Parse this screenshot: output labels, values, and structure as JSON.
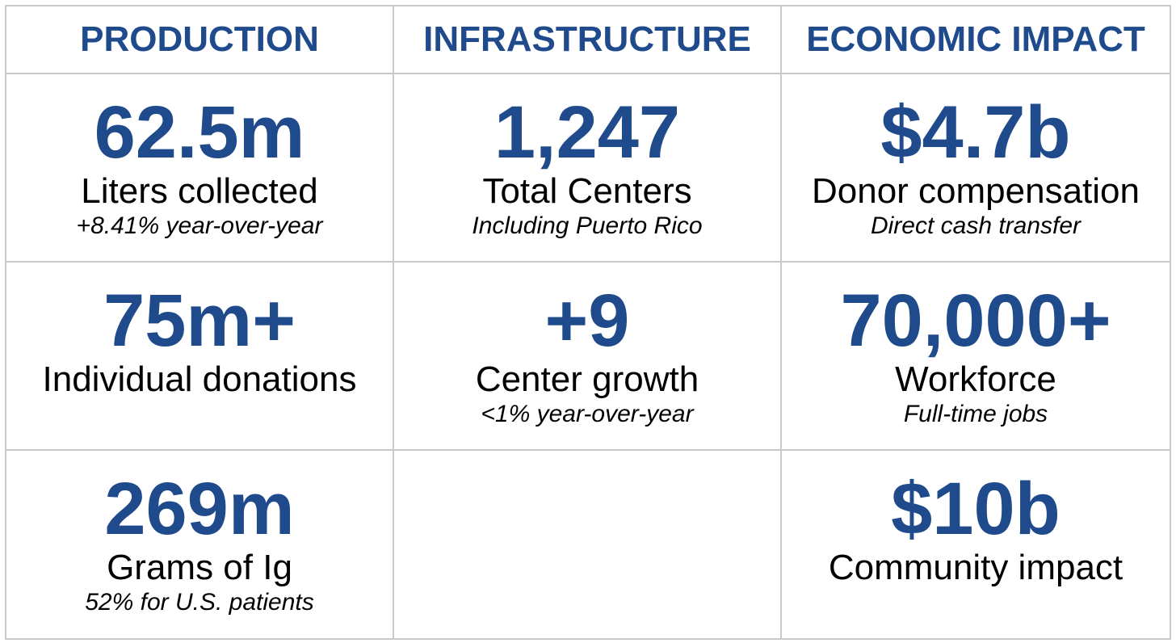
{
  "columns": [
    {
      "heading": "PRODUCTION"
    },
    {
      "heading": "INFRASTRUCTURE"
    },
    {
      "heading": "ECONOMIC IMPACT"
    }
  ],
  "production": {
    "liters": {
      "value": "62.5m",
      "label": "Liters collected",
      "note": "+8.41% year-over-year"
    },
    "donations": {
      "value": "75m+",
      "label": "Individual donations"
    },
    "grams": {
      "value": "269m",
      "label": "Grams of Ig",
      "note": "52% for U.S. patients"
    }
  },
  "infrastructure": {
    "centers": {
      "value": "1,247",
      "label": "Total Centers",
      "note": "Including Puerto Rico"
    },
    "growth": {
      "value": "+9",
      "label": "Center growth",
      "note": "<1% year-over-year"
    }
  },
  "economic": {
    "compensation": {
      "value": "$4.7b",
      "label": "Donor compensation",
      "note": "Direct cash transfer"
    },
    "workforce": {
      "value": "70,000+",
      "label": "Workforce",
      "note": "Full-time jobs"
    },
    "community": {
      "value": "$10b",
      "label": "Community impact"
    }
  },
  "colors": {
    "accent": "#1f4a8c",
    "text": "#000000",
    "grid_line": "#c9c9c9",
    "background": "#ffffff"
  }
}
